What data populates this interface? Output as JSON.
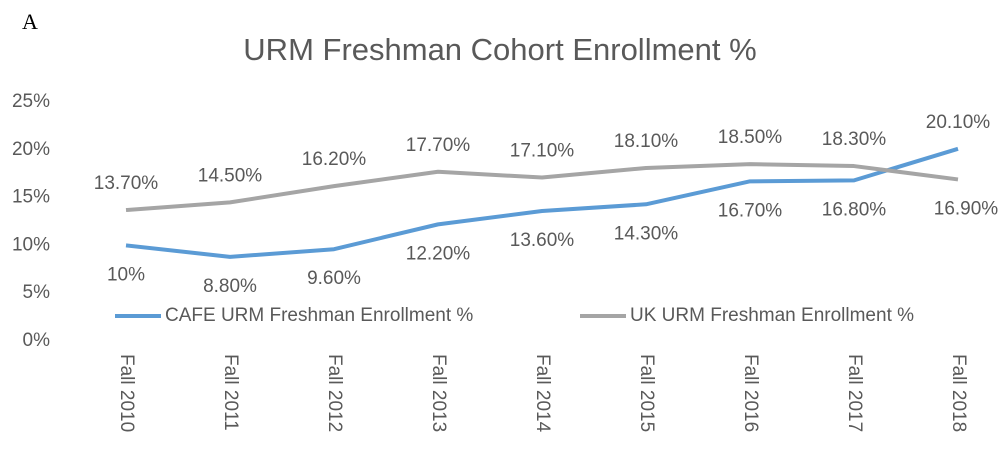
{
  "panel_label": "A",
  "chart_data": {
    "type": "line",
    "title": "URM Freshman Cohort Enrollment %",
    "categories": [
      "Fall 2010",
      "Fall 2011",
      "Fall 2012",
      "Fall 2013",
      "Fall 2014",
      "Fall 2015",
      "Fall 2016",
      "Fall 2017",
      "Fall 2018"
    ],
    "series": [
      {
        "name": "CAFE URM Freshman Enrollment %",
        "color": "#5b9bd5",
        "values": [
          10,
          8.8,
          9.6,
          12.2,
          13.6,
          14.3,
          16.7,
          16.8,
          20.1
        ],
        "value_labels": [
          "10%",
          "8.80%",
          "9.60%",
          "12.20%",
          "13.60%",
          "14.30%",
          "16.70%",
          "16.80%",
          "20.10%"
        ]
      },
      {
        "name": "UK URM Freshman Enrollment %",
        "color": "#a5a5a5",
        "values": [
          13.7,
          14.5,
          16.2,
          17.7,
          17.1,
          18.1,
          18.5,
          18.3,
          16.9
        ],
        "value_labels": [
          "13.70%",
          "14.50%",
          "16.20%",
          "17.70%",
          "17.10%",
          "18.10%",
          "18.50%",
          "18.30%",
          "16.90%"
        ]
      }
    ],
    "ylim": [
      0,
      25
    ],
    "yticks": [
      {
        "value": 0,
        "label": "0%"
      },
      {
        "value": 5,
        "label": "5%"
      },
      {
        "value": 10,
        "label": "10%"
      },
      {
        "value": 15,
        "label": "15%"
      },
      {
        "value": 20,
        "label": "20%"
      },
      {
        "value": 25,
        "label": "25%"
      }
    ],
    "grid": false,
    "legend": "bottom"
  }
}
